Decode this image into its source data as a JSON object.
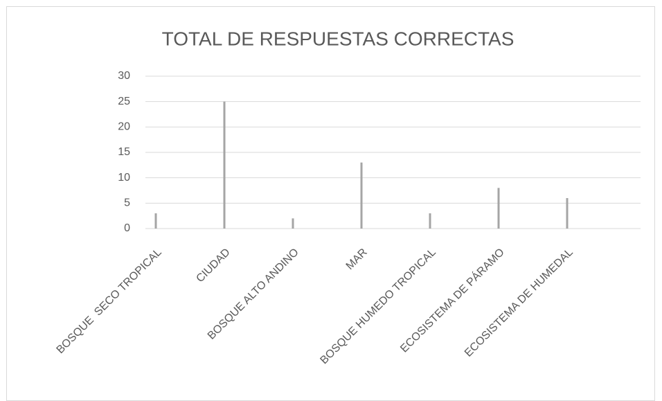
{
  "chart_data": {
    "type": "bar",
    "title": "TOTAL DE RESPUESTAS CORRECTAS",
    "categories": [
      "BOSQUE  SECO TROPICAL",
      "CIUDAD",
      "BOSQUE ALTO ANDINO",
      "MAR",
      "BOSQUE HUMEDO TROPICAL",
      "ECOSISTEMA DE PÁRAMO",
      "ECOSISTEMA DE HUMEDAL"
    ],
    "values": [
      3,
      25,
      2,
      13,
      3,
      8,
      6
    ],
    "color": "#a5a5a5",
    "ylim": [
      0,
      30
    ],
    "yticks": [
      0,
      5,
      10,
      15,
      20,
      25,
      30
    ],
    "grid": true
  }
}
